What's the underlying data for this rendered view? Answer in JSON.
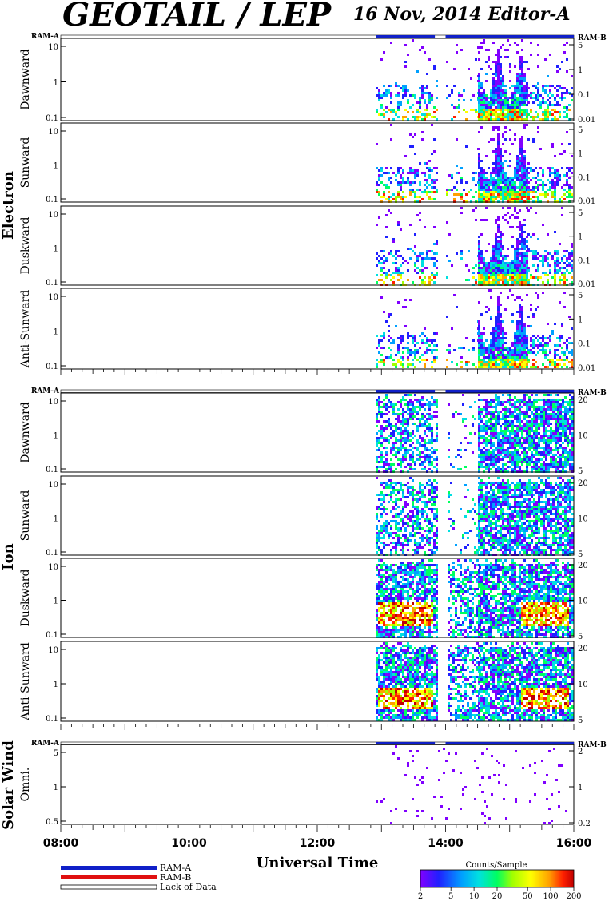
{
  "header": {
    "title": "GEOTAIL / LEP",
    "date_editor": "16 Nov, 2014   Editor-A"
  },
  "colors": {
    "ram_a": "#1020c8",
    "ram_b": "#e01010",
    "lack_of_data": "#ffffff",
    "colormap": [
      "#8000ff",
      "#2020ff",
      "#00a0ff",
      "#00e0e0",
      "#00ff60",
      "#a0ff00",
      "#ffff00",
      "#ffa000",
      "#ff2000",
      "#c00000"
    ]
  },
  "chart_data": {
    "type": "heatmap",
    "xlabel": "Universal Time",
    "x_range": [
      "08:00",
      "16:00"
    ],
    "x_ticks": [
      "08:00",
      "10:00",
      "12:00",
      "14:00",
      "16:00"
    ],
    "groups": [
      {
        "name": "Electron",
        "ram_left": "RAM-A",
        "ram_right": "RAM-B",
        "panels": [
          {
            "label": "Dawnward",
            "left_ticks": [
              "10",
              "1",
              "0.1"
            ],
            "right_ticks": [
              "5",
              "1",
              "0.1",
              "0.01"
            ]
          },
          {
            "label": "Sunward",
            "left_ticks": [
              "10",
              "1",
              "0.1"
            ],
            "right_ticks": [
              "5",
              "1",
              "0.1",
              "0.01"
            ]
          },
          {
            "label": "Duskward",
            "left_ticks": [
              "10",
              "1",
              "0.1"
            ],
            "right_ticks": [
              "5",
              "1",
              "0.1",
              "0.01"
            ]
          },
          {
            "label": "Anti-Sunward",
            "left_ticks": [
              "10",
              "1",
              "0.1"
            ],
            "right_ticks": [
              "5",
              "1",
              "0.1",
              "0.01"
            ]
          }
        ]
      },
      {
        "name": "Ion",
        "ram_left": "RAM-A",
        "ram_right": "RAM-B",
        "panels": [
          {
            "label": "Dawnward",
            "left_ticks": [
              "10",
              "1",
              "0.1"
            ],
            "right_ticks": [
              "20",
              "10",
              "5"
            ]
          },
          {
            "label": "Sunward",
            "left_ticks": [
              "10",
              "1",
              "0.1"
            ],
            "right_ticks": [
              "20",
              "10",
              "5"
            ]
          },
          {
            "label": "Duskward",
            "left_ticks": [
              "10",
              "1",
              "0.1"
            ],
            "right_ticks": [
              "20",
              "10",
              "5"
            ]
          },
          {
            "label": "Anti-Sunward",
            "left_ticks": [
              "10",
              "1",
              "0.1"
            ],
            "right_ticks": [
              "20",
              "10",
              "5"
            ]
          }
        ]
      },
      {
        "name": "Solar Wind",
        "ram_left": "RAM-A",
        "ram_right": "RAM-B",
        "panels": [
          {
            "label": "Omni.",
            "left_ticks": [
              "5",
              "1",
              "0.5"
            ],
            "right_ticks": [
              "2",
              "1",
              "0.2"
            ]
          }
        ]
      }
    ],
    "ram_a_intervals": [
      [
        "12:55",
        "13:50"
      ],
      [
        "14:00",
        "16:00"
      ]
    ],
    "legend": [
      "RAM-A",
      "RAM-B",
      "Lack of Data"
    ],
    "colorbar": {
      "label": "Counts/Sample",
      "ticks": [
        "2",
        "5",
        "10",
        "20",
        "50",
        "100",
        "200"
      ]
    }
  }
}
